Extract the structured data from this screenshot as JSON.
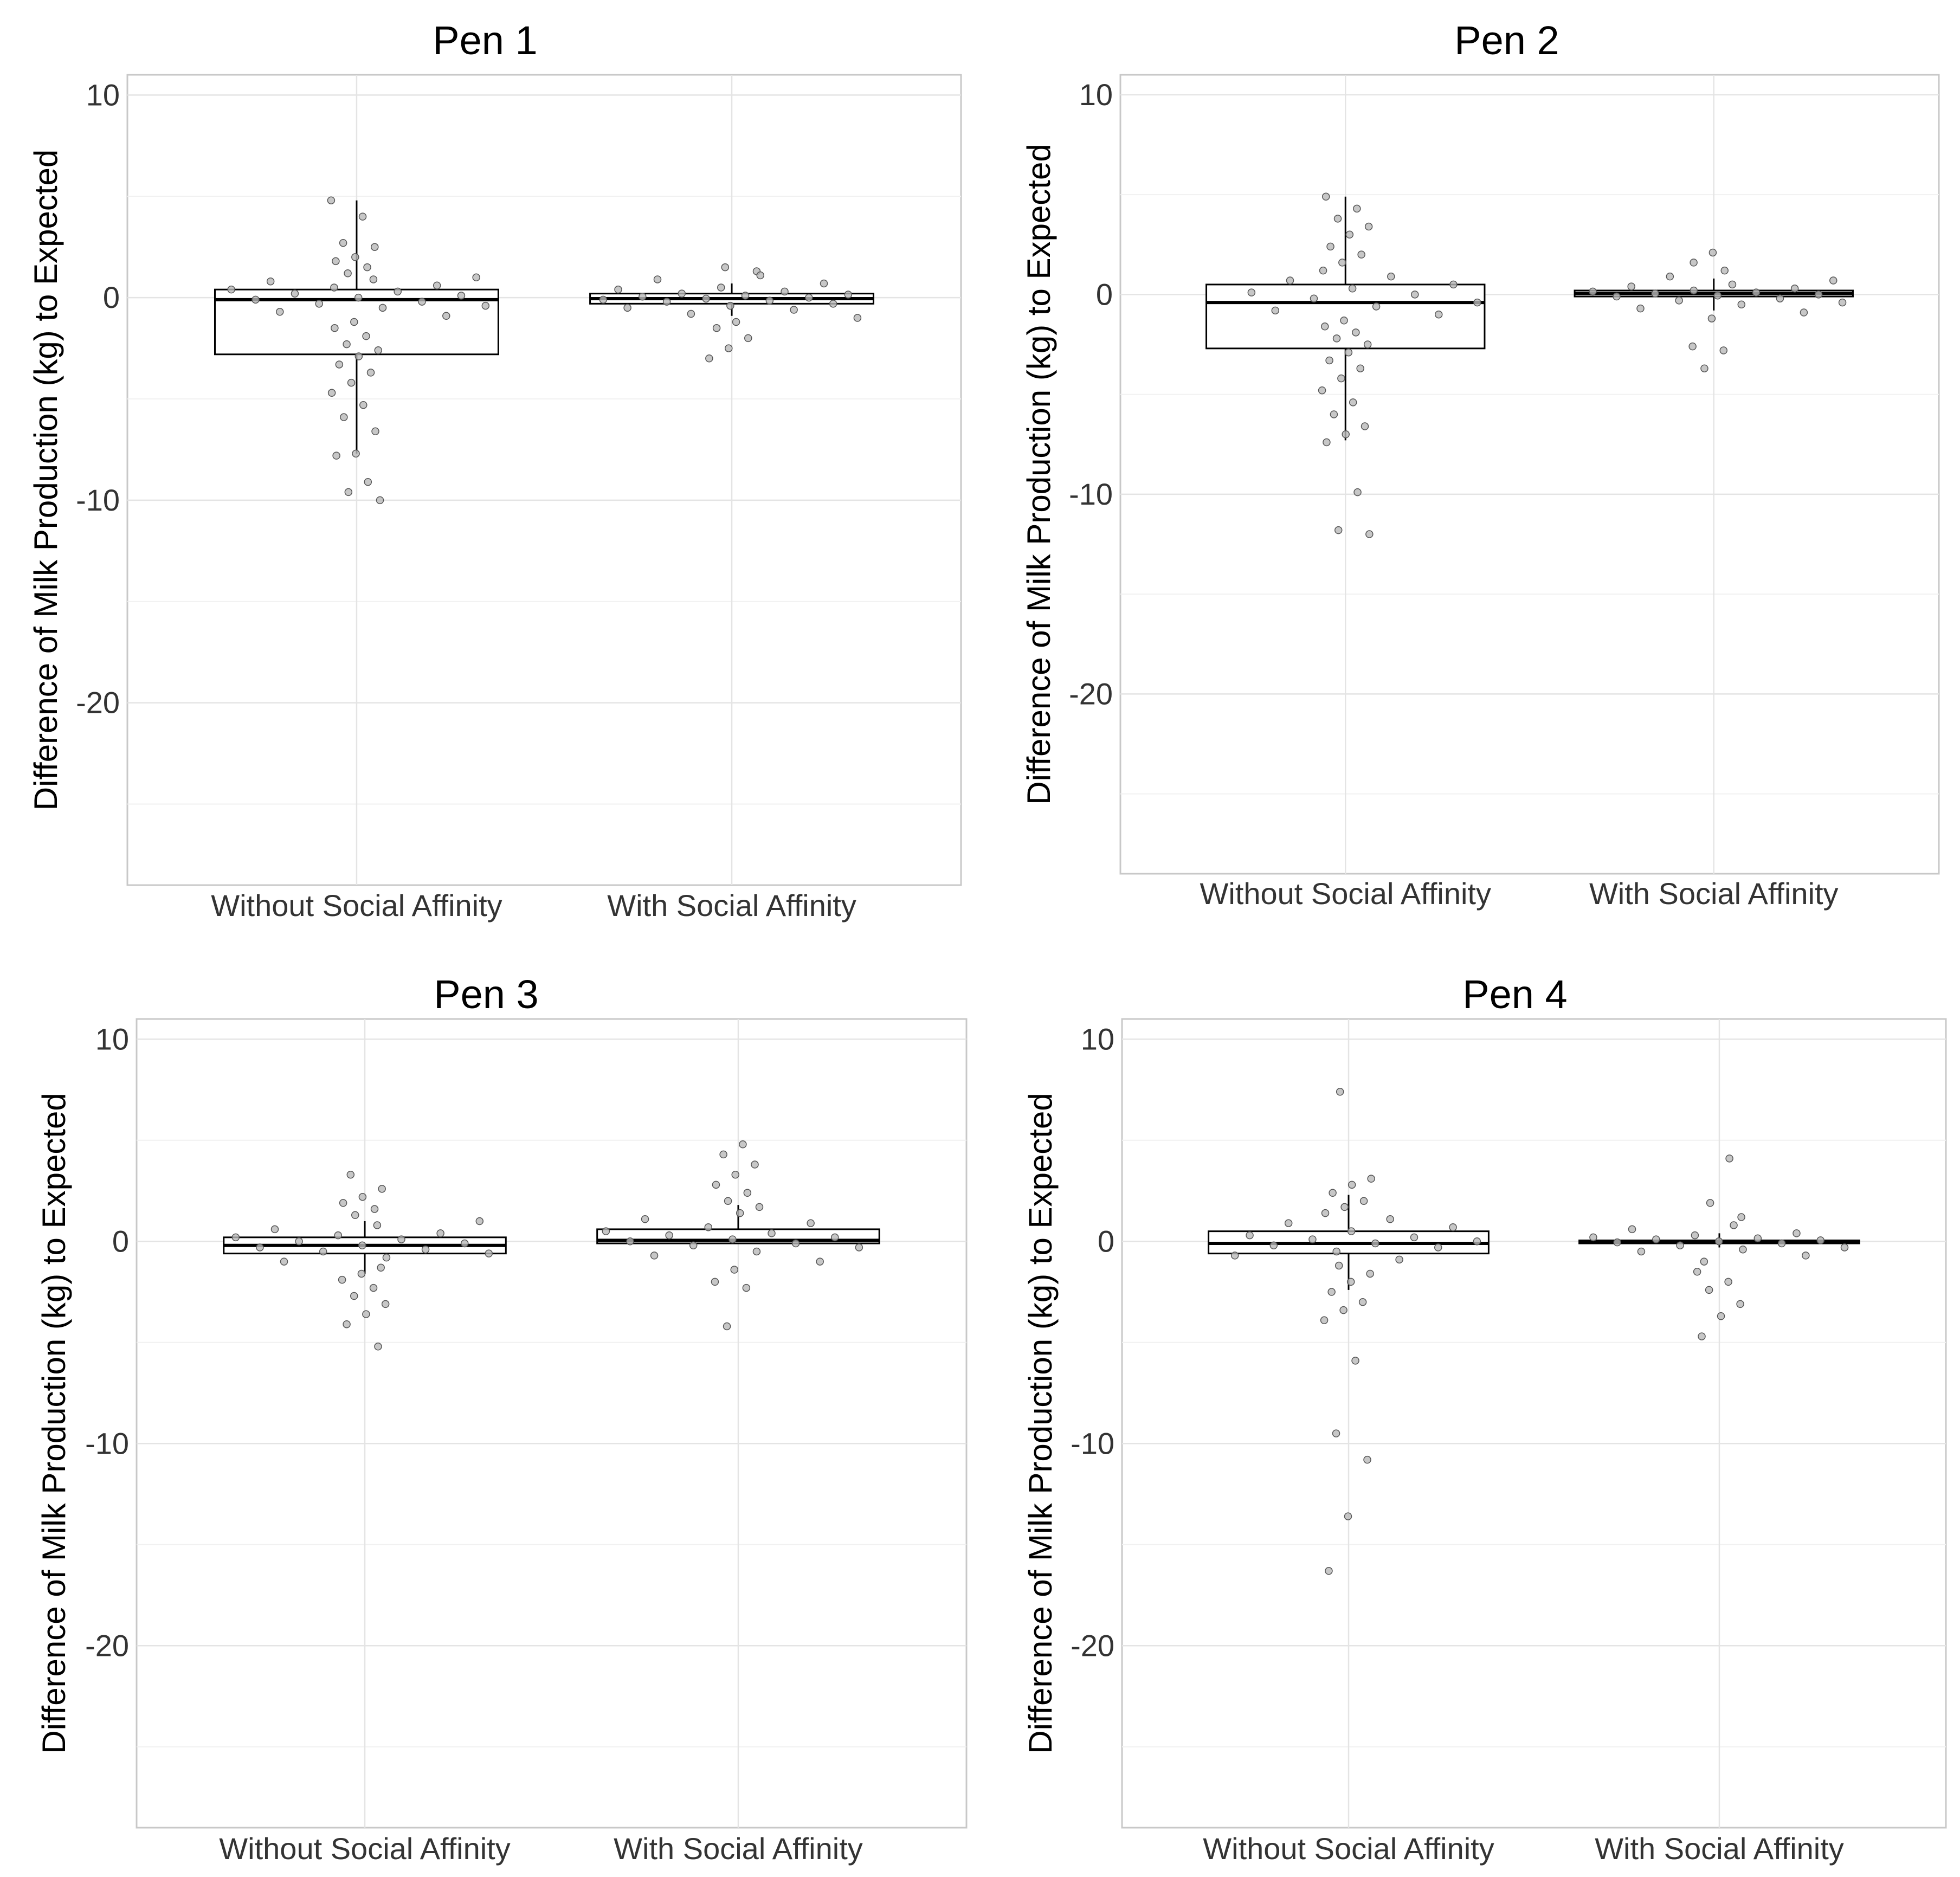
{
  "chart_data": [
    {
      "type": "boxplot",
      "title": "Pen 1",
      "ylabel": "Difference of Milk Production (kg) to Expected",
      "xlabel": "",
      "categories": [
        "Without Social Affinity",
        "With Social Affinity"
      ],
      "yticks": [
        "10",
        "0",
        "-10",
        "-20"
      ],
      "ylim": [
        -29,
        11
      ],
      "grid": true,
      "boxes": [
        {
          "category": "Without Social Affinity",
          "whisker_low": -7.7,
          "q1": -2.8,
          "median": -0.1,
          "q3": 0.4,
          "whisker_high": 4.8
        },
        {
          "category": "With Social Affinity",
          "whisker_low": -0.9,
          "q1": -0.3,
          "median": -0.05,
          "q3": 0.2,
          "whisker_high": 0.7
        }
      ],
      "points": [
        [
          4.8,
          4.0,
          2.7,
          2.5,
          2.0,
          1.8,
          1.5,
          1.2,
          1.0,
          0.9,
          0.8,
          0.6,
          0.5,
          0.4,
          0.3,
          0.2,
          0.1,
          0.0,
          -0.1,
          -0.2,
          -0.3,
          -0.4,
          -0.5,
          -0.7,
          -0.9,
          -1.2,
          -1.5,
          -1.9,
          -2.3,
          -2.6,
          -2.9,
          -3.3,
          -3.7,
          -4.2,
          -4.7,
          -5.3,
          -5.9,
          -6.6,
          -7.7,
          -7.8,
          -9.1,
          -9.6,
          -10.0
        ],
        [
          1.5,
          1.3,
          1.1,
          0.9,
          0.7,
          0.5,
          0.4,
          0.3,
          0.2,
          0.15,
          0.1,
          0.05,
          0.0,
          -0.05,
          -0.1,
          -0.15,
          -0.2,
          -0.3,
          -0.4,
          -0.5,
          -0.6,
          -0.8,
          -1.0,
          -1.2,
          -1.5,
          -2.0,
          -2.5,
          -3.0
        ]
      ]
    },
    {
      "type": "boxplot",
      "title": "Pen 2",
      "ylabel": "Difference of Milk Production (kg) to Expected",
      "xlabel": "",
      "categories": [
        "Without Social Affinity",
        "With Social Affinity"
      ],
      "yticks": [
        "10",
        "0",
        "-10",
        "-20"
      ],
      "ylim": [
        -29,
        11
      ],
      "grid": true,
      "boxes": [
        {
          "category": "Without Social Affinity",
          "whisker_low": -7.3,
          "q1": -2.7,
          "median": -0.4,
          "q3": 0.5,
          "whisker_high": 4.9
        },
        {
          "category": "With Social Affinity",
          "whisker_low": -0.8,
          "q1": -0.1,
          "median": 0.05,
          "q3": 0.2,
          "whisker_high": 0.8
        }
      ],
      "points": [
        [
          4.9,
          4.3,
          3.8,
          3.4,
          3.0,
          2.4,
          2.0,
          1.6,
          1.2,
          0.9,
          0.7,
          0.5,
          0.3,
          0.1,
          0.0,
          -0.2,
          -0.4,
          -0.6,
          -0.8,
          -1.0,
          -1.3,
          -1.6,
          -1.9,
          -2.2,
          -2.5,
          -2.9,
          -3.3,
          -3.7,
          -4.2,
          -4.8,
          -5.4,
          -6.0,
          -6.6,
          -7.0,
          -7.4,
          -9.9,
          -11.8,
          -12.0
        ],
        [
          2.1,
          1.6,
          1.2,
          0.9,
          0.7,
          0.5,
          0.4,
          0.3,
          0.2,
          0.15,
          0.1,
          0.05,
          0.0,
          -0.05,
          -0.1,
          -0.2,
          -0.3,
          -0.4,
          -0.5,
          -0.7,
          -0.9,
          -1.2,
          -2.6,
          -2.8,
          -3.7
        ]
      ]
    },
    {
      "type": "boxplot",
      "title": "Pen 3",
      "ylabel": "Difference of Milk Production (kg) to Expected",
      "xlabel": "",
      "categories": [
        "Without Social Affinity",
        "With Social Affinity"
      ],
      "yticks": [
        "10",
        "0",
        "-10",
        "-20"
      ],
      "ylim": [
        -29,
        11
      ],
      "grid": true,
      "boxes": [
        {
          "category": "Without Social Affinity",
          "whisker_low": -1.6,
          "q1": -0.6,
          "median": -0.2,
          "q3": 0.2,
          "whisker_high": 1.0
        },
        {
          "category": "With Social Affinity",
          "whisker_low": -0.1,
          "q1": -0.1,
          "median": 0.05,
          "q3": 0.6,
          "whisker_high": 1.8
        }
      ],
      "points": [
        [
          3.3,
          2.6,
          2.2,
          1.9,
          1.6,
          1.3,
          1.0,
          0.8,
          0.6,
          0.4,
          0.3,
          0.2,
          0.1,
          0.0,
          -0.1,
          -0.2,
          -0.3,
          -0.4,
          -0.5,
          -0.6,
          -0.8,
          -1.0,
          -1.3,
          -1.6,
          -1.9,
          -2.3,
          -2.7,
          -3.1,
          -3.6,
          -4.1,
          -5.2
        ],
        [
          4.8,
          4.3,
          3.8,
          3.3,
          2.8,
          2.4,
          2.0,
          1.7,
          1.4,
          1.1,
          0.9,
          0.7,
          0.5,
          0.4,
          0.3,
          0.2,
          0.1,
          0.0,
          -0.1,
          -0.2,
          -0.3,
          -0.5,
          -0.7,
          -1.0,
          -1.4,
          -2.0,
          -2.3,
          -4.2
        ]
      ]
    },
    {
      "type": "boxplot",
      "title": "Pen 4",
      "ylabel": "Difference of Milk Production (kg) to Expected",
      "xlabel": "",
      "categories": [
        "Without Social Affinity",
        "With Social Affinity"
      ],
      "yticks": [
        "10",
        "0",
        "-10",
        "-20"
      ],
      "ylim": [
        -29,
        11
      ],
      "grid": true,
      "boxes": [
        {
          "category": "Without Social Affinity",
          "whisker_low": -2.4,
          "q1": -0.6,
          "median": -0.1,
          "q3": 0.5,
          "whisker_high": 2.3
        },
        {
          "category": "With Social Affinity",
          "whisker_low": -0.3,
          "q1": -0.1,
          "median": 0.0,
          "q3": 0.05,
          "whisker_high": 0.4
        }
      ],
      "points": [
        [
          7.4,
          3.1,
          2.8,
          2.4,
          2.0,
          1.7,
          1.4,
          1.1,
          0.9,
          0.7,
          0.5,
          0.3,
          0.2,
          0.1,
          0.0,
          -0.1,
          -0.2,
          -0.3,
          -0.5,
          -0.7,
          -0.9,
          -1.2,
          -1.6,
          -2.0,
          -2.5,
          -3.0,
          -3.4,
          -3.9,
          -5.9,
          -9.5,
          -10.8,
          -13.6,
          -16.3
        ],
        [
          4.1,
          1.9,
          1.2,
          0.8,
          0.6,
          0.4,
          0.3,
          0.2,
          0.15,
          0.1,
          0.05,
          0.0,
          -0.05,
          -0.1,
          -0.2,
          -0.3,
          -0.4,
          -0.5,
          -0.7,
          -1.0,
          -1.5,
          -2.0,
          -2.4,
          -3.1,
          -3.7,
          -4.7
        ]
      ]
    }
  ]
}
